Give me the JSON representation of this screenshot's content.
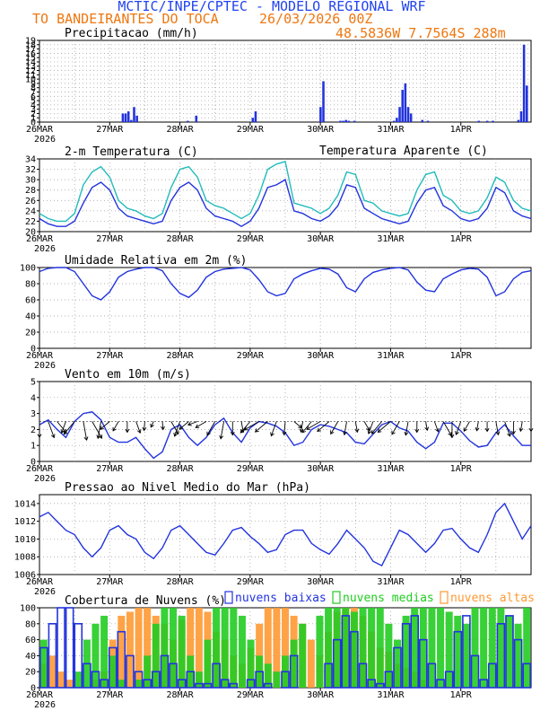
{
  "header": {
    "title": "MCTIC/INPE/CPTEC - MODELO REGIONAL WRF",
    "location": "TO BANDEIRANTES DO TOCA",
    "run": "26/03/2026 00Z",
    "coords": "48.5836W 7.7564S 288m"
  },
  "colors": {
    "blue": "#2233dd",
    "cyan": "#22bbbb",
    "orange": "#ff9933",
    "green": "#22cc22",
    "title_blue": "#2244ee",
    "header_orange": "#ee7711"
  },
  "x_axis": {
    "day_labels": [
      "26MAR",
      "27MAR",
      "28MAR",
      "29MAR",
      "30MAR",
      "31MAR",
      "1APR"
    ],
    "year_label": "2026"
  },
  "chart_data": [
    {
      "id": "precip",
      "type": "bar",
      "title": "Precipitacao (mm/h)",
      "ylim": [
        0,
        19
      ],
      "yticks": [
        0,
        1,
        2,
        3,
        4,
        5,
        6,
        7,
        8,
        9,
        10,
        11,
        12,
        13,
        14,
        15,
        16,
        17,
        18,
        19
      ],
      "series": [
        {
          "name": "Precipitacao",
          "values": [
            0,
            0,
            0,
            0,
            0,
            0,
            0,
            0,
            0,
            0,
            0,
            0,
            0,
            0,
            0,
            0,
            0,
            0,
            0,
            0,
            0,
            0,
            0,
            0,
            0,
            0,
            0,
            0,
            0,
            2,
            2,
            2.5,
            0.5,
            3.5,
            1.5,
            0,
            0,
            0,
            0,
            0,
            0,
            0,
            0,
            0,
            0,
            0,
            0,
            0,
            0,
            0,
            0,
            0,
            0.3,
            0,
            0,
            1.5,
            0,
            0,
            0,
            0,
            0,
            0,
            0,
            0,
            0,
            0,
            0,
            0,
            0,
            0,
            0,
            0,
            0,
            0,
            0,
            1,
            2.5,
            0,
            0,
            0,
            0,
            0,
            0,
            0,
            0,
            0,
            0,
            0,
            0,
            0,
            0,
            0,
            0,
            0,
            0,
            0,
            0,
            0,
            0,
            3.5,
            9.5,
            0,
            0,
            0,
            0,
            0,
            0.3,
            0.3,
            0.5,
            0.3,
            0,
            0.3,
            0,
            0,
            0,
            0,
            0,
            0,
            0,
            0,
            0,
            0,
            0,
            0,
            0,
            0.3,
            1,
            3.5,
            7.5,
            9,
            3.5,
            2,
            0,
            0,
            0,
            0.5,
            0,
            0.3,
            0,
            0,
            0,
            0,
            0,
            0,
            0,
            0,
            0,
            0,
            0,
            0,
            0,
            0,
            0,
            0,
            0,
            0.3,
            0,
            0,
            0.3,
            0,
            0.3,
            0,
            0,
            0,
            0,
            0,
            0,
            0,
            0,
            0.5,
            2.5,
            18,
            8.5,
            0
          ],
          "color": "#2233dd"
        }
      ]
    },
    {
      "id": "temp",
      "type": "line",
      "title": "2-m Temperatura (C)",
      "ylim": [
        20,
        34
      ],
      "yticks": [
        20,
        22,
        24,
        26,
        28,
        30,
        32,
        34
      ],
      "series": [
        {
          "name": "Temperatura",
          "color": "#2233dd",
          "x": [
            0,
            3,
            6,
            9,
            12,
            15,
            18,
            21,
            24,
            27,
            30,
            33,
            36,
            39,
            42,
            45,
            48,
            51,
            54,
            57,
            60,
            63,
            66,
            69,
            72,
            75,
            78,
            81,
            84,
            87,
            90,
            93,
            96,
            99,
            102,
            105,
            108,
            111,
            114,
            117,
            120,
            123,
            126,
            129,
            132,
            135,
            138,
            141,
            144,
            147,
            150,
            153,
            156,
            159,
            162,
            165,
            168
          ],
          "values": [
            22.5,
            21.5,
            21,
            21,
            22,
            25.5,
            28.5,
            29.5,
            28,
            24.5,
            23,
            22.5,
            22,
            21.5,
            22,
            26,
            28.5,
            29.5,
            28,
            24.5,
            23,
            22.5,
            22,
            21,
            22,
            24.5,
            28.5,
            29,
            30,
            24,
            23.5,
            22.5,
            22,
            23,
            25,
            29,
            28.5,
            24.5,
            23.5,
            22.5,
            22,
            21.5,
            22,
            25.5,
            28,
            28.5,
            25,
            24,
            22.5,
            22,
            22.5,
            24.5,
            28.5,
            27.5,
            24,
            23,
            22.5
          ]
        },
        {
          "name": "Temperatura Aparente",
          "color": "#22bbbb",
          "x": [
            0,
            3,
            6,
            9,
            12,
            15,
            18,
            21,
            24,
            27,
            30,
            33,
            36,
            39,
            42,
            45,
            48,
            51,
            54,
            57,
            60,
            63,
            66,
            69,
            72,
            75,
            78,
            81,
            84,
            87,
            90,
            93,
            96,
            99,
            102,
            105,
            108,
            111,
            114,
            117,
            120,
            123,
            126,
            129,
            132,
            135,
            138,
            141,
            144,
            147,
            150,
            153,
            156,
            159,
            162,
            165,
            168
          ],
          "values": [
            23.5,
            22.5,
            22,
            22,
            23.5,
            29,
            31.5,
            32.5,
            30.5,
            26,
            24.5,
            24,
            23,
            22.5,
            23.5,
            28.5,
            32,
            32.5,
            30.5,
            26,
            25,
            24.5,
            23.5,
            22.5,
            23.5,
            27,
            32,
            33,
            33.5,
            25.5,
            25,
            24.5,
            23.5,
            24.5,
            27,
            31.5,
            31,
            26,
            25.5,
            24,
            23.5,
            23,
            23.5,
            28,
            31,
            31.5,
            27,
            26,
            24,
            23.5,
            24,
            26.5,
            30.5,
            29.5,
            26,
            24.5,
            24
          ]
        }
      ],
      "legend_label": "Temperatura Aparente (C)"
    },
    {
      "id": "rh",
      "type": "line",
      "title": "Umidade Relativa em 2m (%)",
      "ylim": [
        0,
        100
      ],
      "yticks": [
        0,
        20,
        40,
        60,
        80,
        100
      ],
      "series": [
        {
          "name": "Umidade Relativa",
          "color": "#2233dd",
          "x": [
            0,
            3,
            6,
            9,
            12,
            15,
            18,
            21,
            24,
            27,
            30,
            33,
            36,
            39,
            42,
            45,
            48,
            51,
            54,
            57,
            60,
            63,
            66,
            69,
            72,
            75,
            78,
            81,
            84,
            87,
            90,
            93,
            96,
            99,
            102,
            105,
            108,
            111,
            114,
            117,
            120,
            123,
            126,
            129,
            132,
            135,
            138,
            141,
            144,
            147,
            150,
            153,
            156,
            159,
            162,
            165,
            168
          ],
          "values": [
            95,
            99,
            100,
            100,
            95,
            80,
            65,
            60,
            70,
            88,
            95,
            98,
            100,
            100,
            96,
            80,
            68,
            63,
            72,
            88,
            95,
            98,
            99,
            100,
            97,
            85,
            70,
            65,
            68,
            86,
            92,
            96,
            99,
            98,
            92,
            75,
            70,
            86,
            94,
            97,
            99,
            100,
            97,
            82,
            72,
            70,
            86,
            92,
            97,
            99,
            98,
            88,
            65,
            70,
            86,
            94,
            96
          ]
        }
      ]
    },
    {
      "id": "wind",
      "type": "line",
      "title": "Vento em 10m (m/s)",
      "ylim": [
        0,
        5
      ],
      "yticks": [
        0,
        1,
        2,
        3,
        4,
        5
      ],
      "series": [
        {
          "name": "Vento",
          "color": "#2233dd",
          "x": [
            0,
            3,
            6,
            9,
            12,
            15,
            18,
            21,
            24,
            27,
            30,
            33,
            36,
            39,
            42,
            45,
            48,
            51,
            54,
            57,
            60,
            63,
            66,
            69,
            72,
            75,
            78,
            81,
            84,
            87,
            90,
            93,
            96,
            99,
            102,
            105,
            108,
            111,
            114,
            117,
            120,
            123,
            126,
            129,
            132,
            135,
            138,
            141,
            144,
            147,
            150,
            153,
            156,
            159,
            162,
            165,
            168
          ],
          "values": [
            2.3,
            2.6,
            2,
            1.5,
            2.5,
            3,
            3.1,
            2.6,
            1.5,
            1.2,
            1.2,
            1.5,
            0.8,
            0.2,
            0.6,
            2,
            2.3,
            1.5,
            1,
            1.5,
            2.3,
            2.7,
            1.8,
            1.2,
            2.1,
            2.5,
            2.4,
            2.2,
            1.8,
            1,
            1.2,
            2,
            2.3,
            2.2,
            2,
            1.8,
            1.2,
            1.1,
            1.7,
            2.3,
            2.5,
            2.1,
            1.9,
            1.2,
            0.8,
            1.2,
            2.4,
            2.4,
            1.9,
            1.3,
            0.9,
            1,
            1.8,
            2.3,
            1.6,
            1,
            1
          ]
        }
      ],
      "arrow_dirs_deg": [
        90,
        70,
        50,
        110,
        130,
        80,
        60,
        100,
        140,
        120,
        90,
        70,
        95,
        115,
        85,
        60,
        110,
        140,
        160,
        150,
        120,
        100,
        90,
        80,
        130,
        150,
        140,
        110,
        95,
        40,
        100,
        130,
        150,
        140,
        120,
        100,
        80,
        60,
        110,
        130,
        140,
        120,
        100,
        90,
        80,
        70,
        60,
        90,
        110,
        120,
        100,
        90,
        80,
        70,
        90,
        100,
        90
      ]
    },
    {
      "id": "pres",
      "type": "line",
      "title": "Pressao ao Nivel Medio do Mar (hPa)",
      "ylim": [
        1006,
        1015
      ],
      "yticks": [
        1006,
        1008,
        1010,
        1012,
        1014
      ],
      "series": [
        {
          "name": "Pressao",
          "color": "#2233dd",
          "x": [
            0,
            3,
            6,
            9,
            12,
            15,
            18,
            21,
            24,
            27,
            30,
            33,
            36,
            39,
            42,
            45,
            48,
            51,
            54,
            57,
            60,
            63,
            66,
            69,
            72,
            75,
            78,
            81,
            84,
            87,
            90,
            93,
            96,
            99,
            102,
            105,
            108,
            111,
            114,
            117,
            120,
            123,
            126,
            129,
            132,
            135,
            138,
            141,
            144,
            147,
            150,
            153,
            156,
            159,
            162,
            165,
            168
          ],
          "values": [
            1012.5,
            1013,
            1012,
            1011,
            1010.5,
            1009,
            1008,
            1009,
            1011,
            1011.5,
            1010.5,
            1010,
            1008.5,
            1007.8,
            1009,
            1011,
            1011.5,
            1010.5,
            1009.5,
            1008.5,
            1008.2,
            1009.5,
            1011,
            1011.3,
            1010.3,
            1009.5,
            1008.5,
            1008.8,
            1010.5,
            1011,
            1011,
            1009.5,
            1008.8,
            1008.3,
            1009.5,
            1011,
            1010,
            1009,
            1007.5,
            1007,
            1009,
            1011,
            1010.5,
            1009.5,
            1008.5,
            1009.5,
            1011,
            1011.2,
            1010,
            1009,
            1008.5,
            1010.5,
            1013,
            1014,
            1012,
            1010,
            1011.5
          ]
        }
      ]
    },
    {
      "id": "cloud",
      "type": "bar",
      "title": "Cobertura de Nuvens (%)",
      "ylim": [
        0,
        100
      ],
      "yticks": [
        0,
        20,
        40,
        60,
        80,
        100
      ],
      "legend": [
        "nuvens baixas",
        "nuvens medias",
        "nuvens altas"
      ],
      "series": [
        {
          "name": "nuvens altas",
          "color": "#ff9933",
          "values": [
            30,
            40,
            20,
            10,
            0,
            0,
            10,
            20,
            60,
            90,
            95,
            100,
            100,
            90,
            80,
            60,
            85,
            100,
            100,
            95,
            70,
            60,
            40,
            30,
            50,
            80,
            100,
            100,
            100,
            90,
            80,
            60,
            40,
            70,
            95,
            100,
            100,
            90,
            70,
            50,
            45,
            30,
            25,
            20,
            10,
            0,
            0,
            0,
            0,
            0,
            0,
            0,
            0,
            0,
            0,
            0,
            0
          ]
        },
        {
          "name": "nuvens medias",
          "color": "#22cc22",
          "values": [
            60,
            0,
            0,
            0,
            20,
            60,
            80,
            90,
            40,
            10,
            0,
            10,
            40,
            80,
            100,
            100,
            90,
            40,
            20,
            60,
            100,
            100,
            100,
            90,
            60,
            40,
            30,
            20,
            40,
            60,
            80,
            0,
            90,
            100,
            100,
            100,
            95,
            100,
            100,
            100,
            80,
            60,
            90,
            100,
            100,
            100,
            100,
            95,
            90,
            80,
            100,
            100,
            100,
            100,
            90,
            80,
            100
          ]
        },
        {
          "name": "nuvens baixas",
          "color": "#2233dd",
          "values": [
            50,
            80,
            100,
            100,
            80,
            30,
            20,
            10,
            50,
            70,
            40,
            20,
            10,
            20,
            40,
            30,
            10,
            20,
            5,
            5,
            30,
            10,
            5,
            0,
            10,
            20,
            5,
            0,
            20,
            40,
            0,
            0,
            0,
            30,
            60,
            90,
            70,
            30,
            10,
            5,
            20,
            50,
            80,
            90,
            60,
            30,
            10,
            20,
            70,
            90,
            40,
            10,
            30,
            80,
            90,
            60,
            30
          ]
        }
      ]
    }
  ]
}
